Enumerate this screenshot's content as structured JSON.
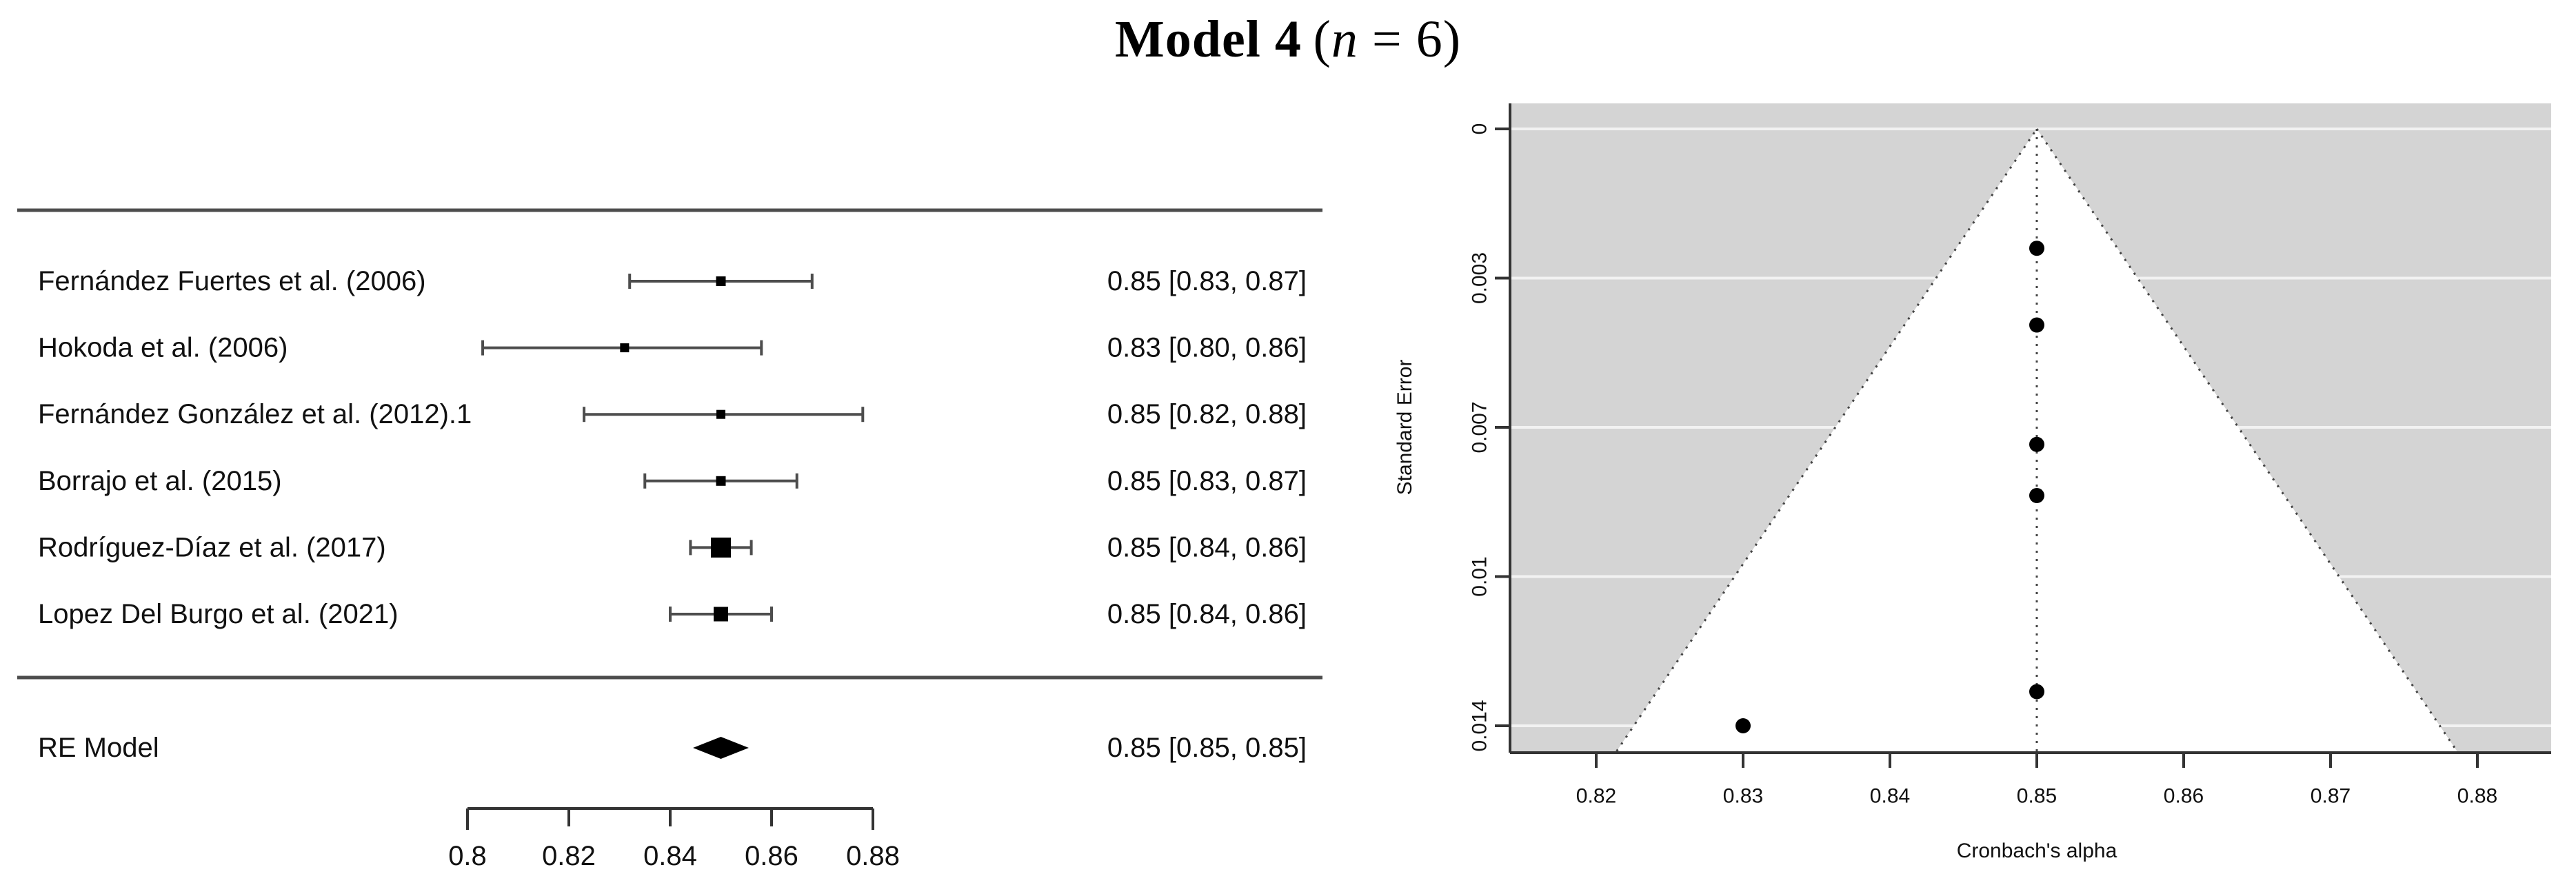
{
  "title": {
    "model": "Model 4",
    "open_paren": "(",
    "n_var": "n",
    "tail": " = 6)"
  },
  "colors": {
    "background": "#ffffff",
    "text": "#111111",
    "ci_line": "#4d4d4d",
    "separator": "#4d4d4d",
    "axis": "#333333",
    "marker": "#000000",
    "funnel_bg": "#d4d4d4",
    "gridline": "#f2f2f2",
    "funnel_dotted": "#444444"
  },
  "chart_data": [
    {
      "type": "forest",
      "panel": "left",
      "studies": [
        {
          "label": "Fernández Fuertes et al. (2006)",
          "display": "0.85 [0.83, 0.87]",
          "est": 0.85,
          "ci_lo": 0.832,
          "ci_hi": 0.868,
          "marker_px": 14
        },
        {
          "label": "Hokoda et al. (2006)",
          "display": "0.83 [0.80, 0.86]",
          "est": 0.831,
          "ci_lo": 0.803,
          "ci_hi": 0.858,
          "marker_px": 13
        },
        {
          "label": "Fernández González et al. (2012).1",
          "display": "0.85 [0.82, 0.88]",
          "est": 0.85,
          "ci_lo": 0.823,
          "ci_hi": 0.878,
          "marker_px": 13
        },
        {
          "label": "Borrajo et al. (2015)",
          "display": "0.85 [0.83, 0.87]",
          "est": 0.85,
          "ci_lo": 0.835,
          "ci_hi": 0.865,
          "marker_px": 14
        },
        {
          "label": "Rodríguez-Díaz et al. (2017)",
          "display": "0.85 [0.84, 0.86]",
          "est": 0.85,
          "ci_lo": 0.844,
          "ci_hi": 0.856,
          "marker_px": 29
        },
        {
          "label": "Lopez Del Burgo et al. (2021)",
          "display": "0.85 [0.84, 0.86]",
          "est": 0.85,
          "ci_lo": 0.84,
          "ci_hi": 0.86,
          "marker_px": 21
        }
      ],
      "summary": {
        "label": "RE Model",
        "display": "0.85 [0.85, 0.85]",
        "est": 0.85,
        "ci_lo": 0.8445,
        "ci_hi": 0.8555
      },
      "x_ticks": [
        {
          "v": 0.8,
          "label": "0.8"
        },
        {
          "v": 0.82,
          "label": "0.82"
        },
        {
          "v": 0.84,
          "label": "0.84"
        },
        {
          "v": 0.86,
          "label": "0.86"
        },
        {
          "v": 0.88,
          "label": "0.88"
        }
      ],
      "xlim": [
        0.8,
        0.88
      ]
    },
    {
      "type": "scatter",
      "subtype": "funnel",
      "panel": "right",
      "xlabel": "Cronbach's alpha",
      "ylabel": "Standard Error",
      "center_x": 0.85,
      "points": [
        {
          "x": 0.85,
          "se": 0.0028
        },
        {
          "x": 0.85,
          "se": 0.0046
        },
        {
          "x": 0.85,
          "se": 0.0074
        },
        {
          "x": 0.85,
          "se": 0.0086
        },
        {
          "x": 0.85,
          "se": 0.0132
        },
        {
          "x": 0.83,
          "se": 0.014
        }
      ],
      "y_ticks": [
        {
          "v": 0.0,
          "label": "0"
        },
        {
          "v": 0.0035,
          "label": "0.003"
        },
        {
          "v": 0.007,
          "label": "0.007"
        },
        {
          "v": 0.0105,
          "label": "0.01"
        },
        {
          "v": 0.014,
          "label": "0.014"
        }
      ],
      "x_ticks": [
        {
          "v": 0.82,
          "label": "0.82"
        },
        {
          "v": 0.83,
          "label": "0.83"
        },
        {
          "v": 0.84,
          "label": "0.84"
        },
        {
          "v": 0.85,
          "label": "0.85"
        },
        {
          "v": 0.86,
          "label": "0.86"
        },
        {
          "v": 0.87,
          "label": "0.87"
        },
        {
          "v": 0.88,
          "label": "0.88"
        }
      ],
      "ylim_reversed": [
        0,
        0.0147
      ],
      "xlim": [
        0.814,
        0.886
      ]
    }
  ]
}
